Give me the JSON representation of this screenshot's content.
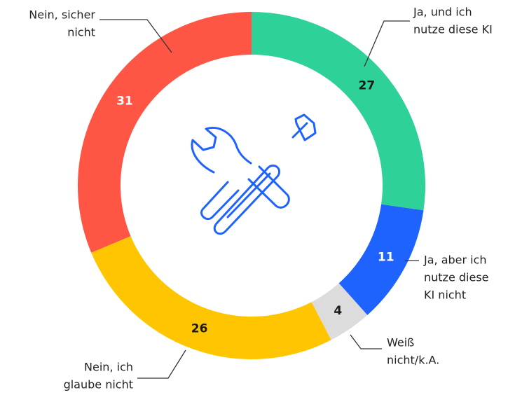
{
  "chart_data": {
    "type": "donut",
    "categories": [
      [
        "Ja, und ich",
        "nutze diese KI"
      ],
      [
        "Ja, aber ich",
        "nutze diese",
        "KI nicht"
      ],
      [
        "Weiß",
        "nicht/k.A."
      ],
      [
        "Nein, ich",
        "glaube nicht"
      ],
      [
        "Nein, sicher",
        "nicht"
      ]
    ],
    "values": [
      27,
      11,
      4,
      26,
      31
    ],
    "colors": [
      "#2ed197",
      "#1f63ff",
      "#dcdcdc",
      "#ffc600",
      "#ff5545"
    ],
    "label_colors": [
      "#1a1a1a",
      "#ffffff",
      "#1a1a1a",
      "#1a1a1a",
      "#ffffff"
    ]
  }
}
